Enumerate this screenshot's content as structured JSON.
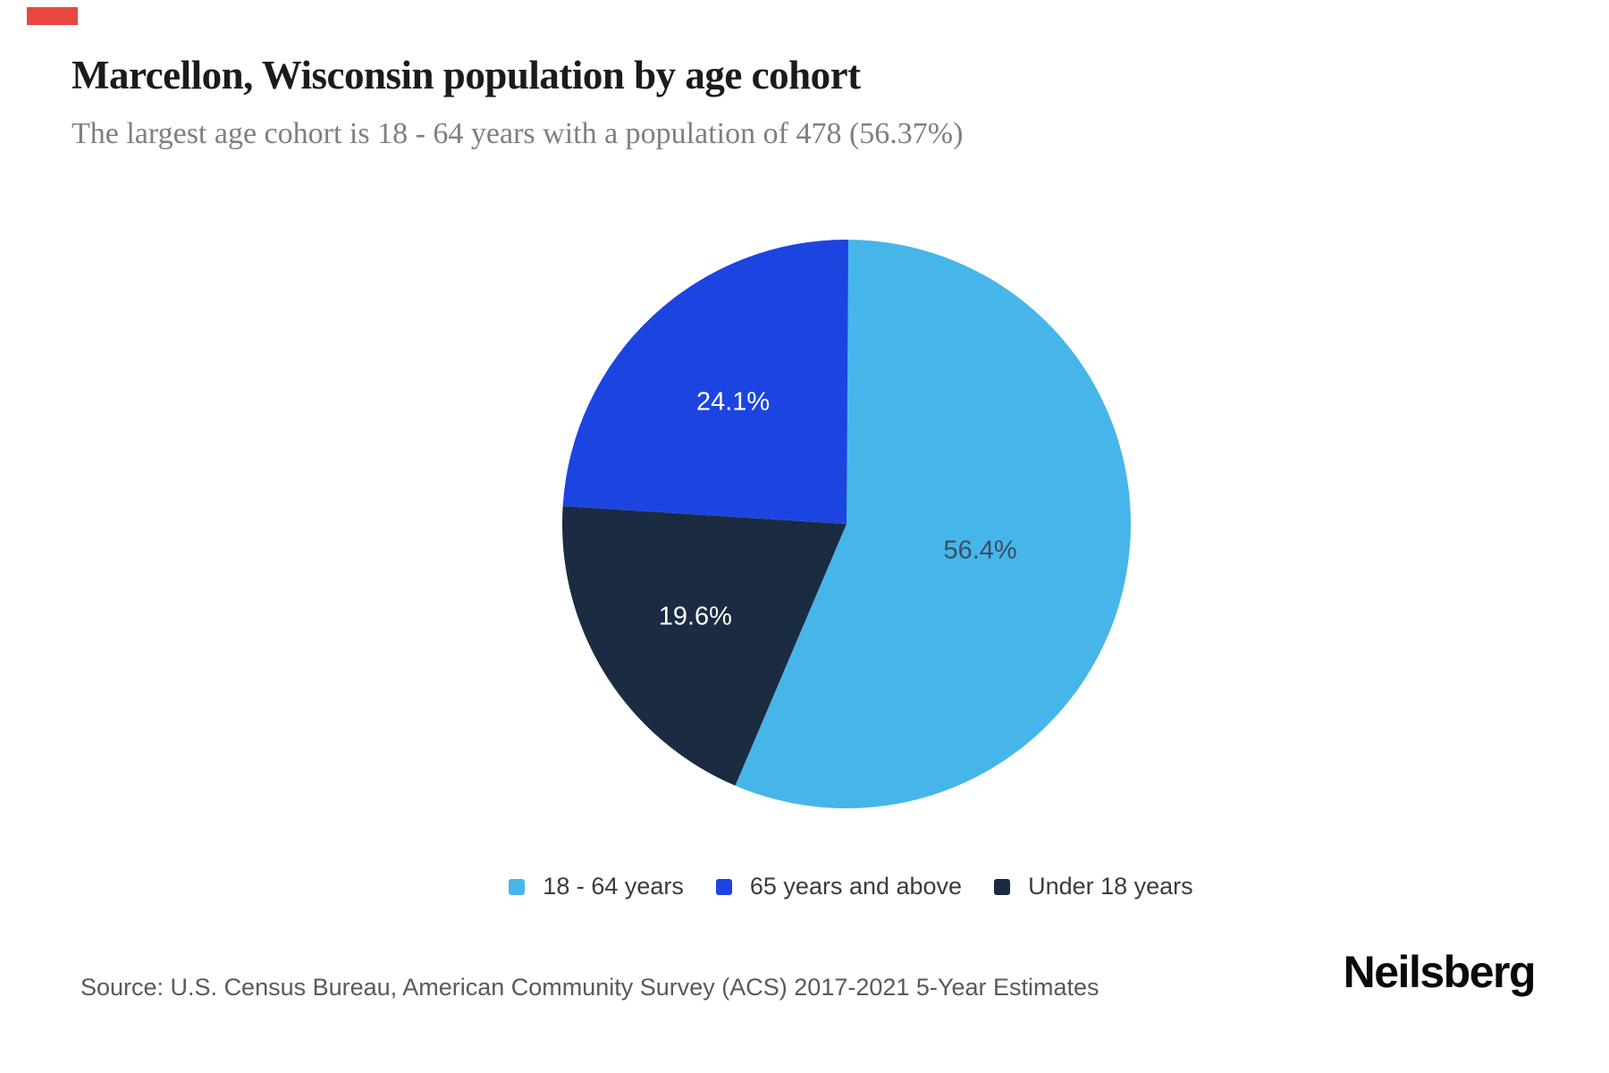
{
  "page": {
    "background_color": "#ffffff",
    "accent_bar_color": "#e8483f"
  },
  "header": {
    "title": "Marcellon, Wisconsin population by age cohort",
    "subtitle": "The largest age cohort is 18 - 64 years with a population of 478 (56.37%)"
  },
  "chart_data": {
    "type": "pie",
    "title": "Marcellon, Wisconsin population by age cohort",
    "start_angle": "12 o'clock",
    "direction": "clockwise",
    "slices": [
      {
        "label": "18 - 64 years",
        "value": 56.4,
        "display_label": "56.4%",
        "color": "#46b6ea",
        "label_color": "#3c4e60"
      },
      {
        "label": "Under 18 years",
        "value": 19.6,
        "display_label": "19.6%",
        "color": "#1b2b42",
        "label_color": "#ffffff"
      },
      {
        "label": "65 years and above",
        "value": 24.1,
        "display_label": "24.1%",
        "color": "#1c44e0",
        "label_color": "#ffffff"
      }
    ],
    "legend_order": [
      "18 - 64 years",
      "65 years and above",
      "Under 18 years"
    ],
    "legend_position": "bottom-center"
  },
  "footer": {
    "source": "Source: U.S. Census Bureau, American Community Survey (ACS) 2017-2021 5-Year Estimates",
    "brand": "Neilsberg"
  }
}
